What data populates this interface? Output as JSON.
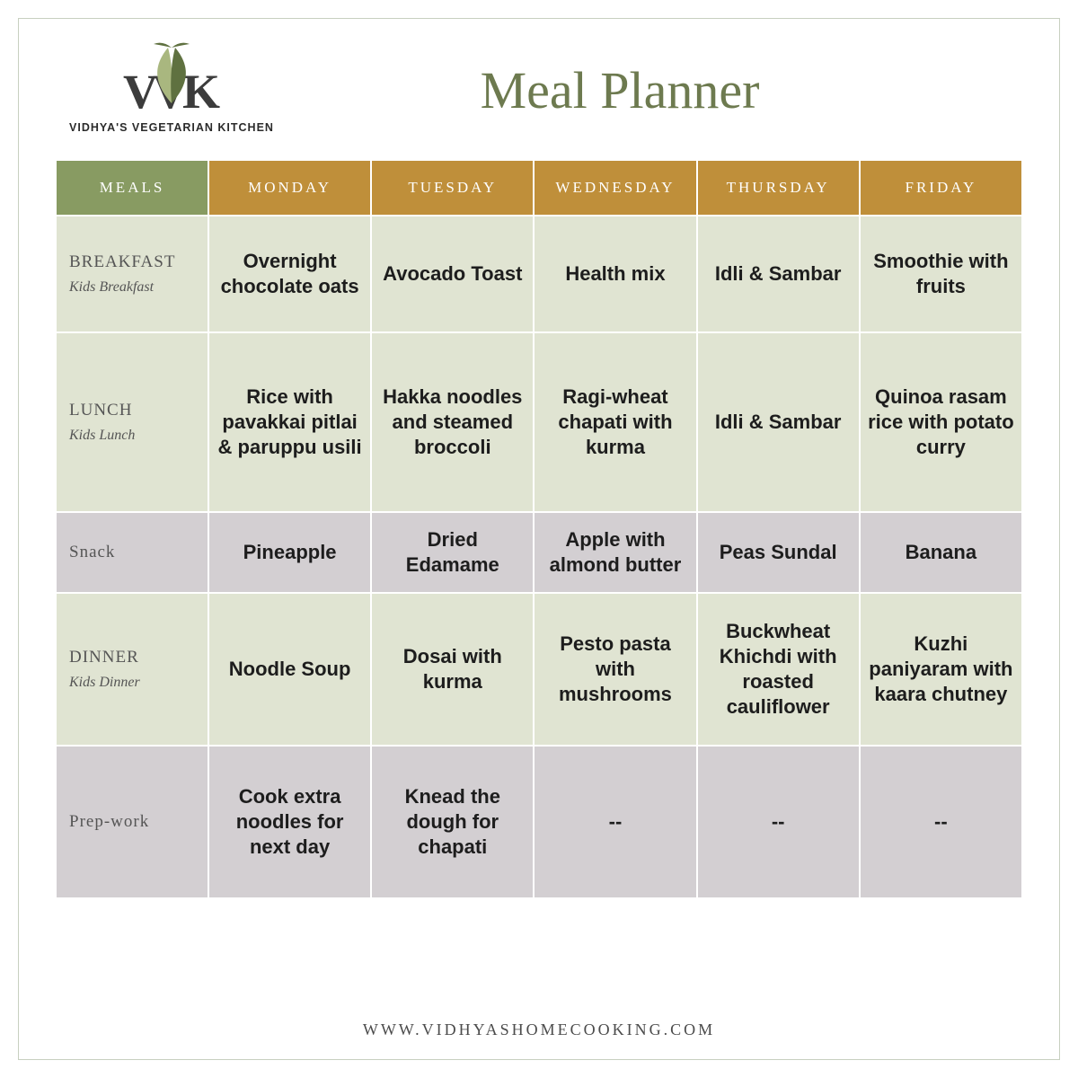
{
  "brand": {
    "letters": "VVK",
    "tagline": "VIDHYA'S VEGETARIAN KITCHEN",
    "leaf_color_light": "#a9b77f",
    "leaf_color_dark": "#5f7140",
    "text_color": "#3c3c3c"
  },
  "title": "Meal Planner",
  "colors": {
    "header_meals_bg": "#889b62",
    "header_day_bg": "#bf8f3a",
    "header_text": "#ffffff",
    "cell_bg": "#e0e4d2",
    "cell_alt_bg": "#d3cfd2",
    "cell_text": "#1d1d1d",
    "title_color": "#6d7a4f",
    "frame_border": "#c8d0c0"
  },
  "columns": {
    "meals": "MEALS",
    "days": [
      "MONDAY",
      "TUESDAY",
      "WEDNESDAY",
      "THURSDAY",
      "FRIDAY"
    ]
  },
  "rows": [
    {
      "label_main": "BREAKFAST",
      "label_sub": "Kids Breakfast",
      "alt": false,
      "cells": [
        "Overnight chocolate oats",
        "Avocado Toast",
        "Health mix",
        "Idli & Sambar",
        "Smoothie with fruits"
      ]
    },
    {
      "label_main": "LUNCH",
      "label_sub": "Kids Lunch",
      "alt": false,
      "cells": [
        "Rice with pavakkai pitlai & paruppu usili",
        "Hakka noodles and steamed broccoli",
        "Ragi-wheat chapati with kurma",
        "Idli & Sambar",
        "Quinoa rasam rice with potato curry"
      ]
    },
    {
      "label_main": "Snack",
      "label_sub": "",
      "alt": true,
      "cells": [
        "Pineapple",
        "Dried Edamame",
        "Apple with almond butter",
        "Peas Sundal",
        "Banana"
      ]
    },
    {
      "label_main": "DINNER",
      "label_sub": "Kids Dinner",
      "alt": false,
      "cells": [
        "Noodle Soup",
        "Dosai with kurma",
        "Pesto pasta with mushrooms",
        "Buckwheat Khichdi with roasted cauliflower",
        "Kuzhi paniyaram with kaara chutney"
      ]
    },
    {
      "label_main": "Prep-work",
      "label_sub": "",
      "alt": true,
      "cells": [
        "Cook extra noodles for next day",
        "Knead the dough for chapati",
        "--",
        "--",
        "--"
      ]
    }
  ],
  "footer_url": "WWW.VIDHYASHOMECOOKING.COM"
}
